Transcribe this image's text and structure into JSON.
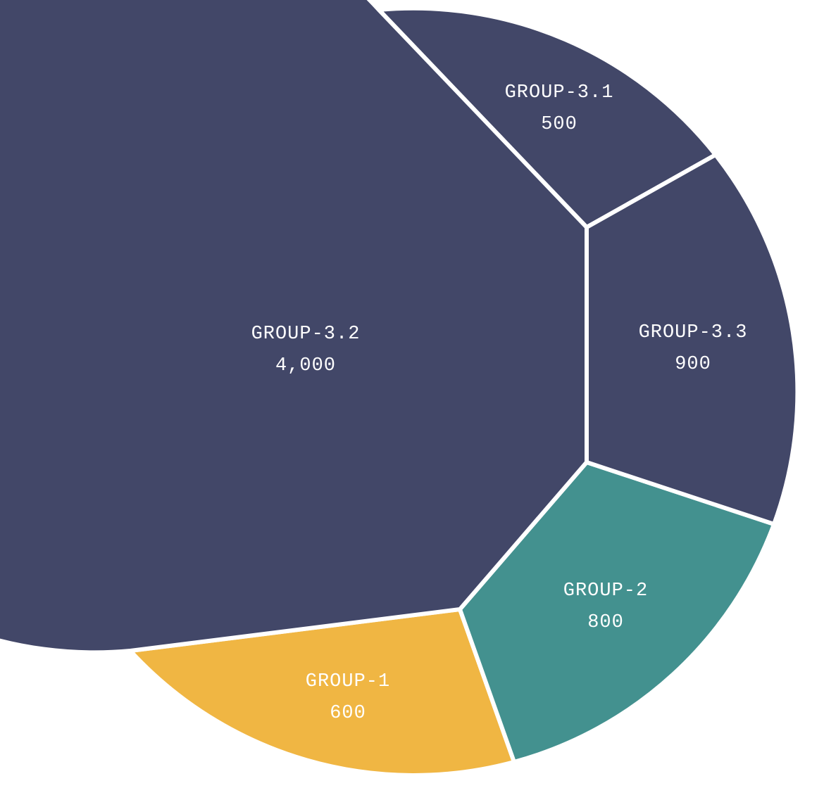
{
  "chart_data": {
    "type": "voronoi-treemap",
    "categories": [
      "GROUP-1",
      "GROUP-2",
      "GROUP-3.1",
      "GROUP-3.2",
      "GROUP-3.3"
    ],
    "values": [
      600,
      800,
      500,
      4000,
      900
    ],
    "value_labels": [
      "600",
      "800",
      "500",
      "4,000",
      "900"
    ],
    "colors": [
      "#f0b643",
      "#43918f",
      "#424768",
      "#424768",
      "#424768"
    ]
  }
}
